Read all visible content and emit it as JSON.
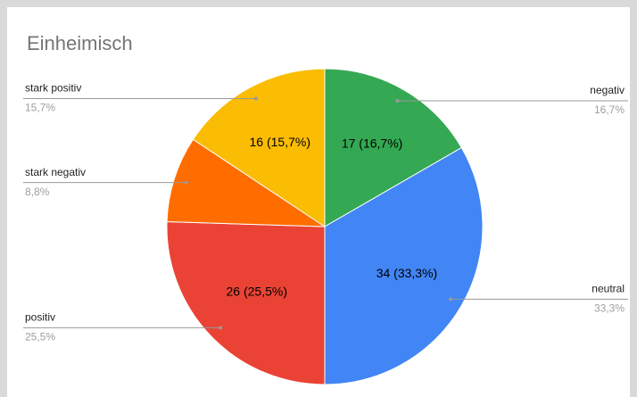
{
  "chart_data": {
    "type": "pie",
    "title": "Einheimisch",
    "categories": [
      "negativ",
      "neutral",
      "positiv",
      "stark negativ",
      "stark positiv"
    ],
    "values": [
      17,
      34,
      26,
      9,
      16
    ],
    "value_labels": [
      "17 (16,7%)",
      "34 (33,3%)",
      "26 (25,5%)",
      null,
      "16 (15,7%)"
    ],
    "percent_labels": [
      "16,7%",
      "33,3%",
      "25,5%",
      "8,8%",
      "15,7%"
    ],
    "colors": [
      "#34a853",
      "#4285f4",
      "#ea4335",
      "#ff6d01",
      "#fbbc04"
    ]
  }
}
